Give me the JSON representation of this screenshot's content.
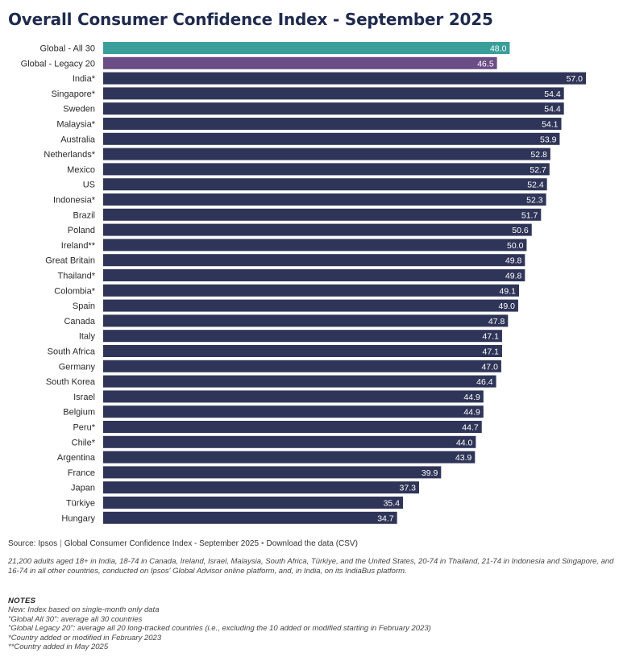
{
  "chart_data": {
    "type": "bar",
    "orientation": "horizontal",
    "title": "Overall Consumer Confidence Index - September 2025",
    "categories": [
      "Global - All 30",
      "Global - Legacy 20",
      "India*",
      "Singapore*",
      "Sweden",
      "Malaysia*",
      "Australia",
      "Netherlands*",
      "Mexico",
      "US",
      "Indonesia*",
      "Brazil",
      "Poland",
      "Ireland**",
      "Great Britain",
      "Thailand*",
      "Colombia*",
      "Spain",
      "Canada",
      "Italy",
      "South Africa",
      "Germany",
      "South Korea",
      "Israel",
      "Belgium",
      "Peru*",
      "Chile*",
      "Argentina",
      "France",
      "Japan",
      "Türkiye",
      "Hungary"
    ],
    "values": [
      48.0,
      46.5,
      57.0,
      54.4,
      54.4,
      54.1,
      53.9,
      52.8,
      52.7,
      52.4,
      52.3,
      51.7,
      50.6,
      50.0,
      49.8,
      49.8,
      49.1,
      49.0,
      47.8,
      47.1,
      47.1,
      47.0,
      46.4,
      44.9,
      44.9,
      44.7,
      44.0,
      43.9,
      39.9,
      37.3,
      35.4,
      34.7
    ],
    "value_labels": [
      "48.0",
      "46.5",
      "57.0",
      "54.4",
      "54.4",
      "54.1",
      "53.9",
      "52.8",
      "52.7",
      "52.4",
      "52.3",
      "51.7",
      "50.6",
      "50.0",
      "49.8",
      "49.8",
      "49.1",
      "49.0",
      "47.8",
      "47.1",
      "47.1",
      "47.0",
      "46.4",
      "44.9",
      "44.9",
      "44.7",
      "44.0",
      "43.9",
      "39.9",
      "37.3",
      "35.4",
      "34.7"
    ],
    "colors": {
      "Global - All 30": "#3a9e9a",
      "Global - Legacy 20": "#6b4d86",
      "default": "#2f3558"
    },
    "xlim": [
      0,
      57.0
    ],
    "grid": false,
    "legend": "none"
  },
  "footer": {
    "source_prefix": "Source: Ipsos",
    "source_title": "Global Consumer Confidence Index - September 2025",
    "download_text": "Download the data (CSV)",
    "methodology": "21,200 adults aged 18+ in India, 18-74 in Canada, Ireland, Israel, Malaysia, South Africa, Türkiye, and the United States, 20-74 in Thailand, 21-74 in Indonesia and Singapore, and 16-74 in all other countries, conducted on Ipsos' Global Advisor online platform, and, in India, on its IndiaBus platform."
  },
  "notes": {
    "heading": "NOTES",
    "lines": [
      "New: Index based on single-month only data",
      "\"Global All 30\": average all 30 countries",
      "\"Global Legacy 20\": average all 20 long-tracked countries (i.e., excluding the 10 added or modified starting in February 2023)",
      "*Country added or modified in February 2023",
      "**Country added in May 2025"
    ]
  }
}
